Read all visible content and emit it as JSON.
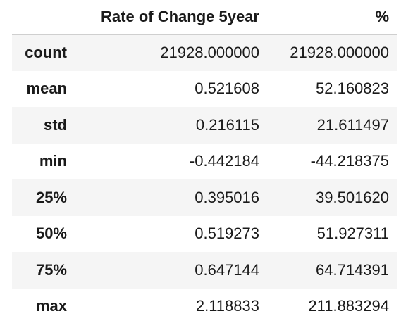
{
  "table": {
    "columns": [
      "",
      "Rate of Change 5year",
      "%"
    ],
    "rows": [
      {
        "label": "count",
        "values": [
          "21928.000000",
          "21928.000000"
        ]
      },
      {
        "label": "mean",
        "values": [
          "0.521608",
          "52.160823"
        ]
      },
      {
        "label": "std",
        "values": [
          "0.216115",
          "21.611497"
        ]
      },
      {
        "label": "min",
        "values": [
          "-0.442184",
          "-44.218375"
        ]
      },
      {
        "label": "25%",
        "values": [
          "0.395016",
          "39.501620"
        ]
      },
      {
        "label": "50%",
        "values": [
          "0.519273",
          "51.927311"
        ]
      },
      {
        "label": "75%",
        "values": [
          "0.647144",
          "64.714391"
        ]
      },
      {
        "label": "max",
        "values": [
          "2.118833",
          "211.883294"
        ]
      }
    ]
  },
  "colors": {
    "stripe": "#f5f5f5",
    "text": "#1a1a1a",
    "header_rule": "#cfcfcf",
    "edge_mark": "#d9534f"
  }
}
